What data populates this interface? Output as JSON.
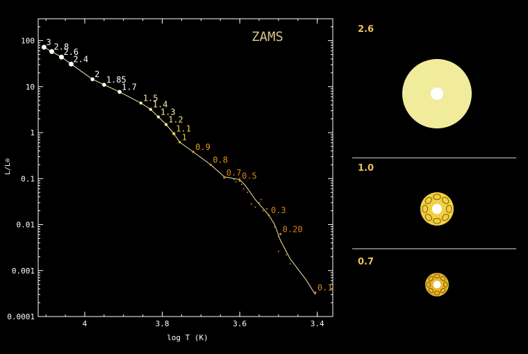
{
  "chart_data": {
    "type": "scatter",
    "title": "ZAMS",
    "xlabel": "log T (K)",
    "ylabel": "L/L⊙",
    "xlim": [
      4.12,
      3.36
    ],
    "ylim": [
      0.0001,
      300
    ],
    "yscale": "log",
    "x_reversed": true,
    "x_ticks": [
      4,
      3.8,
      3.6,
      3.4
    ],
    "x_tick_labels": [
      "4",
      "3.8",
      "3.6",
      "3.4"
    ],
    "y_ticks": [
      100,
      10,
      1,
      0.1,
      0.01,
      0.001,
      0.0001
    ],
    "y_tick_labels": [
      "100",
      "10",
      "1",
      "0.1",
      "0.01",
      "0.001",
      "0.0001"
    ],
    "grid": false,
    "annotations": [
      {
        "label": "3",
        "x": 4.105,
        "y": 72,
        "color": "#ffffff"
      },
      {
        "label": "2.8",
        "x": 4.085,
        "y": 58,
        "color": "#ffffff"
      },
      {
        "label": "2.6",
        "x": 4.06,
        "y": 44,
        "color": "#ffffff"
      },
      {
        "label": "2.4",
        "x": 4.035,
        "y": 31,
        "color": "#ffffff"
      },
      {
        "label": "2",
        "x": 3.98,
        "y": 14.5,
        "color": "#ffffff"
      },
      {
        "label": "1.85",
        "x": 3.95,
        "y": 11,
        "color": "#ffffff"
      },
      {
        "label": "1.7",
        "x": 3.91,
        "y": 7.7,
        "color": "#ffffff"
      },
      {
        "label": "1.5",
        "x": 3.855,
        "y": 4.4,
        "color": "#f2efa8"
      },
      {
        "label": "1.4",
        "x": 3.83,
        "y": 3.2,
        "color": "#f2efa8"
      },
      {
        "label": "1.3",
        "x": 3.81,
        "y": 2.2,
        "color": "#f2efa8"
      },
      {
        "label": "1.2",
        "x": 3.79,
        "y": 1.5,
        "color": "#f2e47a"
      },
      {
        "label": "1.1",
        "x": 3.77,
        "y": 0.95,
        "color": "#f2d24a"
      },
      {
        "label": "1",
        "x": 3.755,
        "y": 0.62,
        "color": "#f2c23a"
      },
      {
        "label": "0.9",
        "x": 3.72,
        "y": 0.38,
        "color": "#e0a020"
      },
      {
        "label": "0.8",
        "x": 3.675,
        "y": 0.2,
        "color": "#d89018"
      },
      {
        "label": "0.7",
        "x": 3.64,
        "y": 0.105,
        "color": "#d48418"
      },
      {
        "label": "0.5",
        "x": 3.6,
        "y": 0.09,
        "color": "#d48418"
      },
      {
        "label": "0.3",
        "x": 3.525,
        "y": 0.016,
        "color": "#d48418"
      },
      {
        "label": "0.20",
        "x": 3.495,
        "y": 0.0062,
        "color": "#d48418"
      },
      {
        "label": "0.1",
        "x": 3.405,
        "y": 0.00033,
        "color": "#d48418"
      }
    ],
    "track": [
      [
        4.105,
        72
      ],
      [
        4.085,
        58
      ],
      [
        4.06,
        44
      ],
      [
        4.035,
        31
      ],
      [
        3.98,
        14.5
      ],
      [
        3.95,
        11
      ],
      [
        3.91,
        7.7
      ],
      [
        3.855,
        4.4
      ],
      [
        3.83,
        3.2
      ],
      [
        3.81,
        2.2
      ],
      [
        3.79,
        1.5
      ],
      [
        3.77,
        0.95
      ],
      [
        3.755,
        0.62
      ],
      [
        3.72,
        0.38
      ],
      [
        3.675,
        0.2
      ],
      [
        3.64,
        0.11
      ],
      [
        3.6,
        0.095
      ],
      [
        3.585,
        0.07
      ],
      [
        3.56,
        0.035
      ],
      [
        3.525,
        0.016
      ],
      [
        3.51,
        0.01
      ],
      [
        3.495,
        0.0045
      ],
      [
        3.47,
        0.0018
      ],
      [
        3.43,
        0.00065
      ],
      [
        3.405,
        0.0003
      ]
    ],
    "scatter_points": [
      [
        3.615,
        0.095
      ],
      [
        3.61,
        0.085
      ],
      [
        3.6,
        0.1
      ],
      [
        3.595,
        0.075
      ],
      [
        3.59,
        0.06
      ],
      [
        3.58,
        0.05
      ],
      [
        3.57,
        0.028
      ],
      [
        3.56,
        0.024
      ],
      [
        3.55,
        0.03
      ],
      [
        3.545,
        0.035
      ],
      [
        3.54,
        0.02
      ],
      [
        3.53,
        0.022
      ],
      [
        3.52,
        0.014
      ],
      [
        3.51,
        0.009
      ],
      [
        3.5,
        0.0055
      ],
      [
        3.49,
        0.0038
      ],
      [
        3.48,
        0.0022
      ],
      [
        3.5,
        0.0026
      ],
      [
        3.47,
        0.0014
      ]
    ]
  },
  "panels": [
    {
      "label": "2.6",
      "color": "#f0ec9c",
      "core": "#ffffff",
      "size": 0.9
    },
    {
      "label": "1.0",
      "color": "#f2d040",
      "core": "#ffffff",
      "size": 0.42
    },
    {
      "label": "0.7",
      "color": "#e8b628",
      "core": "#ffffff",
      "size": 0.32
    }
  ],
  "colors": {
    "axis": "#ffffff",
    "track": "#f2ecb0",
    "title": "#d6c38a",
    "tick_label": "#ffffff",
    "panel_label": "#e8c15a",
    "divider": "#d0d0d0"
  }
}
